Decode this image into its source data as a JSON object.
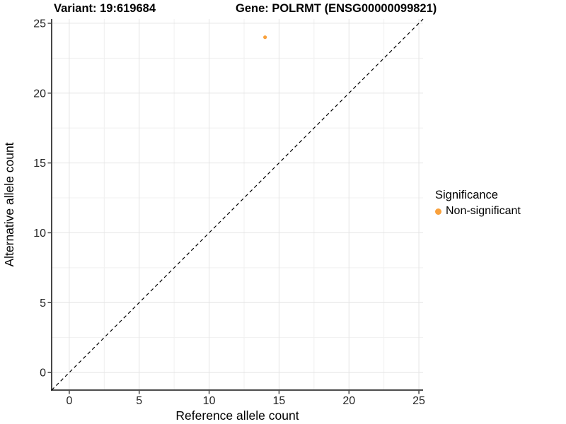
{
  "header": {
    "variant_title": "Variant: 19:619684",
    "gene_title": "Gene: POLRMT (ENSG00000099821)"
  },
  "legend": {
    "title": "Significance",
    "items": [
      {
        "label": "Non-significant",
        "color": "#F9A13C"
      }
    ]
  },
  "chart_data": {
    "type": "scatter",
    "xlabel": "Reference allele count",
    "ylabel": "Alternative allele count",
    "xlim": [
      -1.26,
      25.3
    ],
    "ylim": [
      -1.26,
      25.3
    ],
    "x_ticks": [
      0,
      5,
      10,
      15,
      20,
      25
    ],
    "y_ticks": [
      0,
      5,
      10,
      15,
      20,
      25
    ],
    "minor_tick_step": 2.5,
    "grid": "major+minor",
    "legend_position": "right",
    "identity_line": {
      "type": "abline",
      "slope": 1,
      "intercept": 0,
      "style": "dashed",
      "color": "#000000"
    },
    "series": [
      {
        "name": "Non-significant",
        "color": "#F9A13C",
        "points": [
          {
            "x": 14,
            "y": 24
          }
        ]
      }
    ]
  },
  "colors": {
    "accent_orange": "#F9A13C",
    "axis_line": "#333333",
    "grid_major": "#E4E4E4",
    "grid_minor": "#F0F0F0",
    "tick_label": "#262626",
    "axis_title": "#000000"
  }
}
